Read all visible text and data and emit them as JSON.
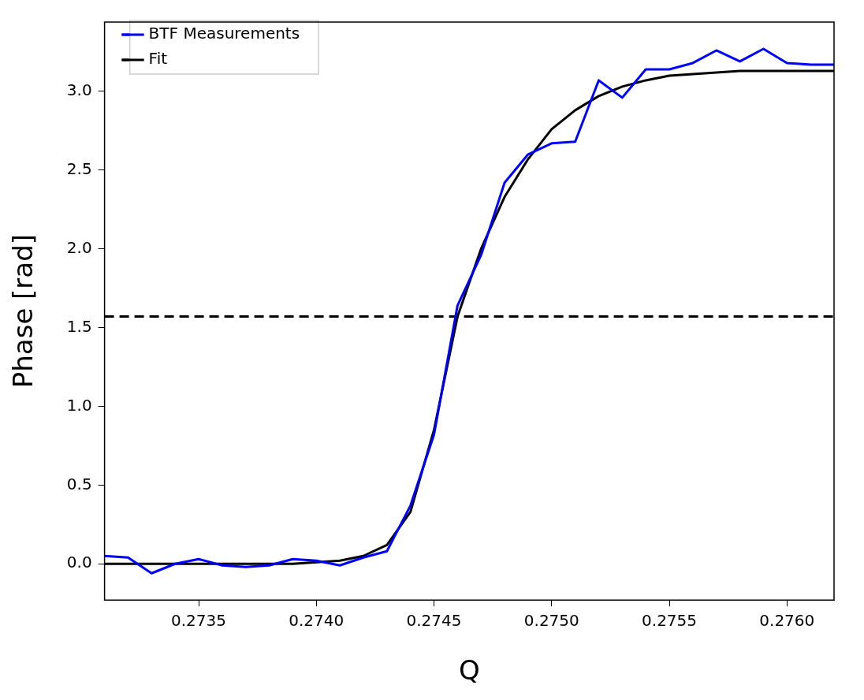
{
  "chart_data": {
    "type": "line",
    "xlabel": "Q",
    "ylabel": "Phase [rad]",
    "legend": "top left",
    "grid": false,
    "marker": "none",
    "xlim": [
      0.2731,
      0.2762
    ],
    "ylim": [
      -0.23,
      3.44
    ],
    "xticks": [
      0.2735,
      {
        "value": 0.274,
        "label": "0.2740"
      },
      {
        "value": 0.2745,
        "label": "0.2745"
      },
      {
        "value": 0.275,
        "label": "0.2750"
      },
      0.2755,
      {
        "value": 0.276,
        "label": "0.2760"
      }
    ],
    "yticks": [
      {
        "value": 0,
        "label": "0.0"
      },
      0.5,
      {
        "value": 1,
        "label": "1.0"
      },
      1.5,
      {
        "value": 2,
        "label": "2.0"
      },
      2.5,
      {
        "value": 3,
        "label": "3.0"
      }
    ],
    "ref_lines": [
      {
        "axis": "y",
        "value": 1.57,
        "color": "#000000",
        "line_style": "dashed"
      }
    ],
    "series": [
      {
        "name": "BTF Measurements",
        "color": "#0000ff",
        "line_style": "solid",
        "x": [
          0.2731,
          0.2732,
          0.2733,
          0.2734,
          0.2735,
          0.2736,
          0.2737,
          0.2738,
          0.2739,
          0.274,
          0.2741,
          0.2742,
          0.2743,
          0.2744,
          0.2745,
          0.2746,
          0.2747,
          0.2748,
          0.2749,
          0.275,
          0.2751,
          0.2752,
          0.2753,
          0.2754,
          0.2755,
          0.2756,
          0.2757,
          0.2758,
          0.2759,
          0.276,
          0.2761,
          0.2762
        ],
        "values": [
          0.05,
          0.04,
          -0.06,
          0.0,
          0.03,
          -0.01,
          -0.02,
          -0.01,
          0.03,
          0.02,
          -0.01,
          0.04,
          0.08,
          0.37,
          0.82,
          1.64,
          1.96,
          2.42,
          2.6,
          2.67,
          2.68,
          3.07,
          2.96,
          3.14,
          3.14,
          3.18,
          3.26,
          3.19,
          3.27,
          3.18,
          3.17,
          3.17
        ]
      },
      {
        "name": "Fit",
        "color": "#000000",
        "line_style": "solid",
        "x": [
          0.2731,
          0.2732,
          0.2733,
          0.2734,
          0.2735,
          0.2736,
          0.2737,
          0.2738,
          0.2739,
          0.274,
          0.2741,
          0.2742,
          0.2743,
          0.2744,
          0.2745,
          0.2746,
          0.2747,
          0.2748,
          0.2749,
          0.275,
          0.2751,
          0.2752,
          0.2753,
          0.2754,
          0.2755,
          0.2756,
          0.2757,
          0.2758,
          0.2759,
          0.276,
          0.2761,
          0.2762
        ],
        "values": [
          0.0,
          0.0,
          0.0,
          0.0,
          0.0,
          0.0,
          0.0,
          0.0,
          0.0,
          0.01,
          0.02,
          0.05,
          0.12,
          0.33,
          0.85,
          1.57,
          2.0,
          2.33,
          2.57,
          2.76,
          2.88,
          2.97,
          3.03,
          3.07,
          3.1,
          3.11,
          3.12,
          3.13,
          3.13,
          3.13,
          3.13,
          3.13
        ]
      }
    ]
  }
}
